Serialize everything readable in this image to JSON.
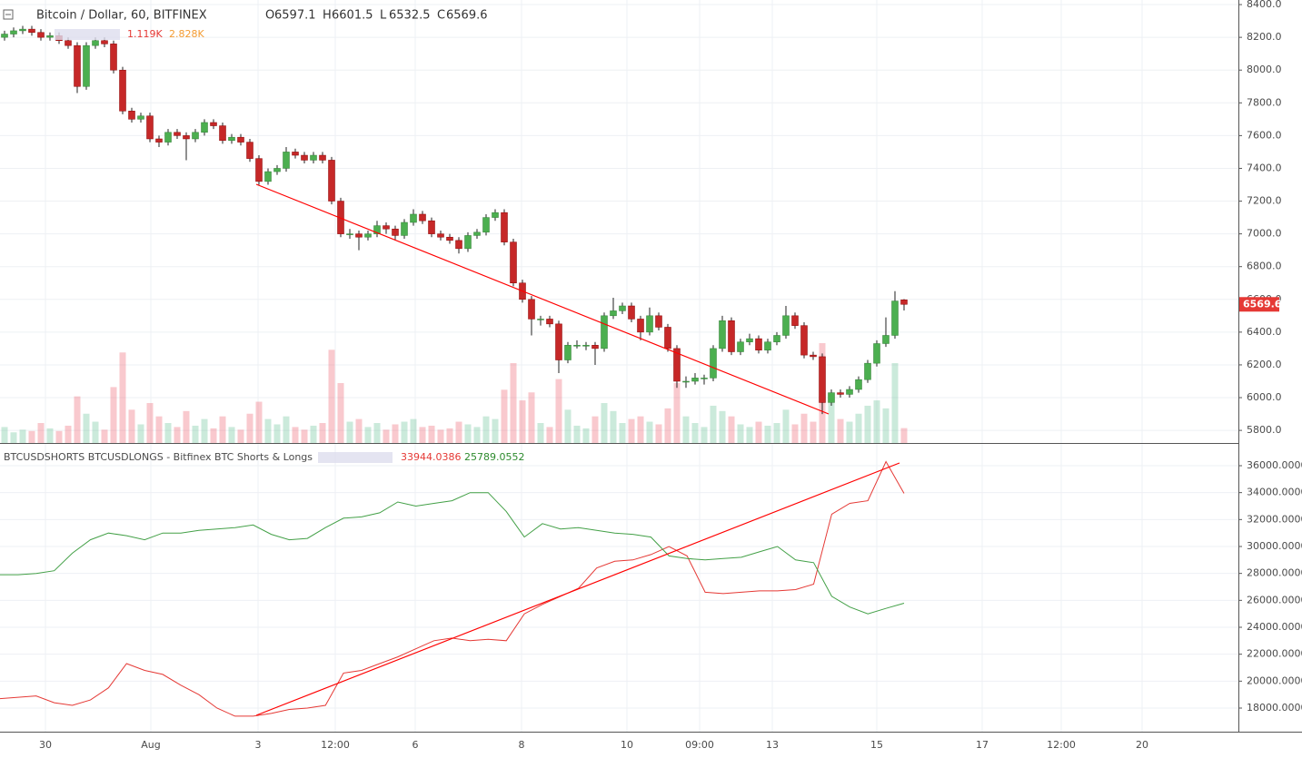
{
  "chart_data": [
    {
      "type": "candlestick",
      "title": "Bitcoin / Dollar, 60, BITFINEX",
      "ohlc_labels": [
        "O",
        "H",
        "L",
        "C"
      ],
      "up_color": "#53b987",
      "down_color": "#eb4d5c",
      "candles": [
        [
          8200,
          8240,
          8180,
          8220
        ],
        [
          8220,
          8260,
          8200,
          8240
        ],
        [
          8240,
          8270,
          8220,
          8250
        ],
        [
          8250,
          8270,
          8210,
          8230
        ],
        [
          8230,
          8250,
          8180,
          8200
        ],
        [
          8200,
          8230,
          8180,
          8210
        ],
        [
          8210,
          8230,
          8160,
          8180
        ],
        [
          8180,
          8200,
          8130,
          8150
        ],
        [
          8150,
          8170,
          7860,
          7900
        ],
        [
          7900,
          8170,
          7880,
          8150
        ],
        [
          8150,
          8200,
          8130,
          8180
        ],
        [
          8180,
          8200,
          8140,
          8160
        ],
        [
          8160,
          8180,
          7980,
          8000
        ],
        [
          8000,
          8020,
          7730,
          7750
        ],
        [
          7750,
          7770,
          7680,
          7700
        ],
        [
          7700,
          7740,
          7680,
          7720
        ],
        [
          7720,
          7740,
          7560,
          7580
        ],
        [
          7580,
          7600,
          7530,
          7560
        ],
        [
          7560,
          7640,
          7540,
          7620
        ],
        [
          7620,
          7640,
          7580,
          7600
        ],
        [
          7600,
          7620,
          7450,
          7580
        ],
        [
          7580,
          7640,
          7560,
          7620
        ],
        [
          7620,
          7700,
          7600,
          7680
        ],
        [
          7680,
          7700,
          7640,
          7660
        ],
        [
          7660,
          7680,
          7550,
          7570
        ],
        [
          7570,
          7610,
          7550,
          7590
        ],
        [
          7590,
          7610,
          7540,
          7560
        ],
        [
          7560,
          7580,
          7440,
          7460
        ],
        [
          7460,
          7480,
          7300,
          7320
        ],
        [
          7320,
          7400,
          7300,
          7380
        ],
        [
          7380,
          7420,
          7360,
          7400
        ],
        [
          7400,
          7530,
          7380,
          7500
        ],
        [
          7500,
          7520,
          7460,
          7480
        ],
        [
          7480,
          7500,
          7430,
          7450
        ],
        [
          7450,
          7500,
          7430,
          7480
        ],
        [
          7480,
          7500,
          7430,
          7450
        ],
        [
          7450,
          7470,
          7180,
          7200
        ],
        [
          7200,
          7220,
          6980,
          7000
        ],
        [
          7000,
          7030,
          6970,
          7000
        ],
        [
          7000,
          7020,
          6900,
          6980
        ],
        [
          6980,
          7020,
          6960,
          7000
        ],
        [
          7000,
          7080,
          6980,
          7050
        ],
        [
          7050,
          7070,
          7000,
          7030
        ],
        [
          7030,
          7050,
          6960,
          6990
        ],
        [
          6990,
          7090,
          6970,
          7070
        ],
        [
          7070,
          7150,
          7050,
          7120
        ],
        [
          7120,
          7140,
          7060,
          7080
        ],
        [
          7080,
          7100,
          6980,
          7000
        ],
        [
          7000,
          7020,
          6960,
          6980
        ],
        [
          6980,
          7000,
          6940,
          6960
        ],
        [
          6960,
          6980,
          6880,
          6910
        ],
        [
          6910,
          7010,
          6890,
          6990
        ],
        [
          6990,
          7030,
          6970,
          7010
        ],
        [
          7010,
          7120,
          6990,
          7100
        ],
        [
          7100,
          7150,
          7080,
          7130
        ],
        [
          7130,
          7150,
          6930,
          6950
        ],
        [
          6950,
          6970,
          6680,
          6700
        ],
        [
          6700,
          6720,
          6580,
          6600
        ],
        [
          6600,
          6620,
          6380,
          6480
        ],
        [
          6480,
          6500,
          6440,
          6480
        ],
        [
          6480,
          6500,
          6430,
          6450
        ],
        [
          6450,
          6470,
          6150,
          6230
        ],
        [
          6230,
          6340,
          6210,
          6320
        ],
        [
          6320,
          6350,
          6300,
          6320
        ],
        [
          6320,
          6340,
          6290,
          6320
        ],
        [
          6320,
          6340,
          6200,
          6300
        ],
        [
          6300,
          6520,
          6280,
          6500
        ],
        [
          6500,
          6610,
          6480,
          6530
        ],
        [
          6530,
          6580,
          6510,
          6560
        ],
        [
          6560,
          6580,
          6460,
          6480
        ],
        [
          6480,
          6500,
          6350,
          6400
        ],
        [
          6400,
          6550,
          6380,
          6500
        ],
        [
          6500,
          6520,
          6410,
          6430
        ],
        [
          6430,
          6450,
          6280,
          6300
        ],
        [
          6300,
          6320,
          6060,
          6100
        ],
        [
          6100,
          6130,
          6060,
          6100
        ],
        [
          6100,
          6150,
          6080,
          6120
        ],
        [
          6120,
          6140,
          6080,
          6120
        ],
        [
          6120,
          6320,
          6100,
          6300
        ],
        [
          6300,
          6500,
          6280,
          6470
        ],
        [
          6470,
          6490,
          6260,
          6280
        ],
        [
          6280,
          6360,
          6260,
          6340
        ],
        [
          6340,
          6390,
          6320,
          6360
        ],
        [
          6360,
          6380,
          6270,
          6290
        ],
        [
          6290,
          6360,
          6270,
          6340
        ],
        [
          6340,
          6400,
          6320,
          6380
        ],
        [
          6380,
          6560,
          6360,
          6500
        ],
        [
          6500,
          6520,
          6420,
          6440
        ],
        [
          6440,
          6460,
          6240,
          6260
        ],
        [
          6260,
          6280,
          6230,
          6250
        ],
        [
          6250,
          6270,
          5900,
          5970
        ],
        [
          5970,
          6050,
          5950,
          6030
        ],
        [
          6030,
          6050,
          6000,
          6020
        ],
        [
          6020,
          6070,
          6000,
          6050
        ],
        [
          6050,
          6130,
          6030,
          6110
        ],
        [
          6110,
          6230,
          6090,
          6210
        ],
        [
          6210,
          6350,
          6190,
          6330
        ],
        [
          6330,
          6490,
          6310,
          6380
        ],
        [
          6380,
          6650,
          6360,
          6590
        ],
        [
          6597.1,
          6601.5,
          6532.5,
          6569.6
        ]
      ],
      "volume": [
        1.2,
        0.8,
        1.0,
        0.9,
        1.5,
        1.1,
        0.9,
        1.3,
        3.5,
        2.2,
        1.6,
        1.0,
        4.2,
        6.8,
        2.5,
        1.4,
        3.0,
        2.0,
        1.5,
        1.2,
        2.4,
        1.3,
        1.8,
        1.1,
        2.0,
        1.2,
        1.0,
        2.2,
        3.1,
        1.8,
        1.4,
        2.0,
        1.2,
        1.0,
        1.3,
        1.5,
        7.0,
        4.5,
        1.6,
        1.8,
        1.2,
        1.5,
        1.0,
        1.4,
        1.6,
        1.8,
        1.2,
        1.3,
        1.0,
        1.1,
        1.6,
        1.4,
        1.2,
        2.0,
        1.8,
        4.0,
        6.0,
        3.2,
        3.8,
        1.5,
        1.2,
        4.8,
        2.5,
        1.3,
        1.1,
        2.0,
        3.0,
        2.4,
        1.5,
        1.8,
        2.0,
        1.6,
        1.4,
        2.6,
        4.5,
        2.0,
        1.5,
        1.2,
        2.8,
        2.4,
        2.0,
        1.4,
        1.2,
        1.6,
        1.3,
        1.5,
        2.5,
        1.4,
        2.2,
        1.6,
        7.5,
        3.0,
        1.8,
        1.6,
        2.2,
        2.8,
        3.2,
        2.6,
        6.0,
        1.119
      ],
      "volume_last_label": "1.119K",
      "volume_ma_label": "2.828K",
      "ylim": [
        5723,
        8428
      ],
      "yticks": [
        {
          "value": 5800,
          "label": "5800.0"
        },
        {
          "value": 6000,
          "label": "6000.0"
        },
        {
          "value": 6200,
          "label": "6200.0"
        },
        {
          "value": 6400,
          "label": "6400.0"
        },
        {
          "value": 6600,
          "label": "6600.0"
        },
        {
          "value": 6800,
          "label": "6800.0"
        },
        {
          "value": 7000,
          "label": "7000.0"
        },
        {
          "value": 7200,
          "label": "7200.0"
        },
        {
          "value": 7400,
          "label": "7400.0"
        },
        {
          "value": 7600,
          "label": "7600.0"
        },
        {
          "value": 7800,
          "label": "7800.0"
        },
        {
          "value": 8000,
          "label": "8000.0"
        },
        {
          "value": 8200,
          "label": "8200.0"
        },
        {
          "value": 8400,
          "label": "8400.0"
        }
      ],
      "grid": true
    },
    {
      "type": "line",
      "title": "BTCUSDSHORTS BTCUSDLONGS - Bitfinex BTC Shorts & Longs",
      "series": [
        {
          "color": "#e53935",
          "values": [
            18700,
            18800,
            18900,
            18400,
            18200,
            18600,
            19500,
            21300,
            20800,
            20500,
            19700,
            19000,
            18000,
            17400,
            17400,
            17600,
            17900,
            18000,
            18200,
            20600,
            20800,
            21300,
            21800,
            22400,
            23000,
            23200,
            23000,
            23100,
            23000,
            25000,
            25700,
            26300,
            26900,
            28400,
            28900,
            29000,
            29400,
            30000,
            29300,
            26600,
            26500,
            26600,
            26700,
            26700,
            26800,
            27200,
            32400,
            33200,
            33400,
            36300,
            33944.0386
          ]
        },
        {
          "color": "#43a047",
          "values": [
            27900,
            27900,
            28000,
            28200,
            29500,
            30500,
            31000,
            30800,
            30500,
            31000,
            31000,
            31200,
            31300,
            31400,
            31600,
            30900,
            30500,
            30600,
            31400,
            32100,
            32200,
            32500,
            33300,
            33000,
            33200,
            33400,
            34000,
            34000,
            32600,
            30700,
            31700,
            31300,
            31400,
            31200,
            31000,
            30900,
            30700,
            29300,
            29100,
            29000,
            29100,
            29200,
            29600,
            30000,
            29000,
            28800,
            26300,
            25500,
            25000,
            25400,
            25789.0552
          ]
        }
      ],
      "ylim": [
        16247,
        37550
      ],
      "yticks": [
        {
          "value": 18000,
          "label": "18000.0000"
        },
        {
          "value": 20000,
          "label": "20000.0000"
        },
        {
          "value": 22000,
          "label": "22000.0000"
        },
        {
          "value": 24000,
          "label": "24000.0000"
        },
        {
          "value": 26000,
          "label": "26000.0000"
        },
        {
          "value": 28000,
          "label": "28000.0000"
        },
        {
          "value": 30000,
          "label": "30000.0000"
        },
        {
          "value": 32000,
          "label": "32000.0000"
        },
        {
          "value": 34000,
          "label": "34000.0000"
        },
        {
          "value": 36000,
          "label": "36000.0000"
        }
      ],
      "grid": true
    }
  ],
  "time_axis": [
    "30",
    "Aug",
    "3",
    "12:00",
    "6",
    "8",
    "10",
    "09:00",
    "13",
    "15",
    "17",
    "12:00",
    "20"
  ]
}
